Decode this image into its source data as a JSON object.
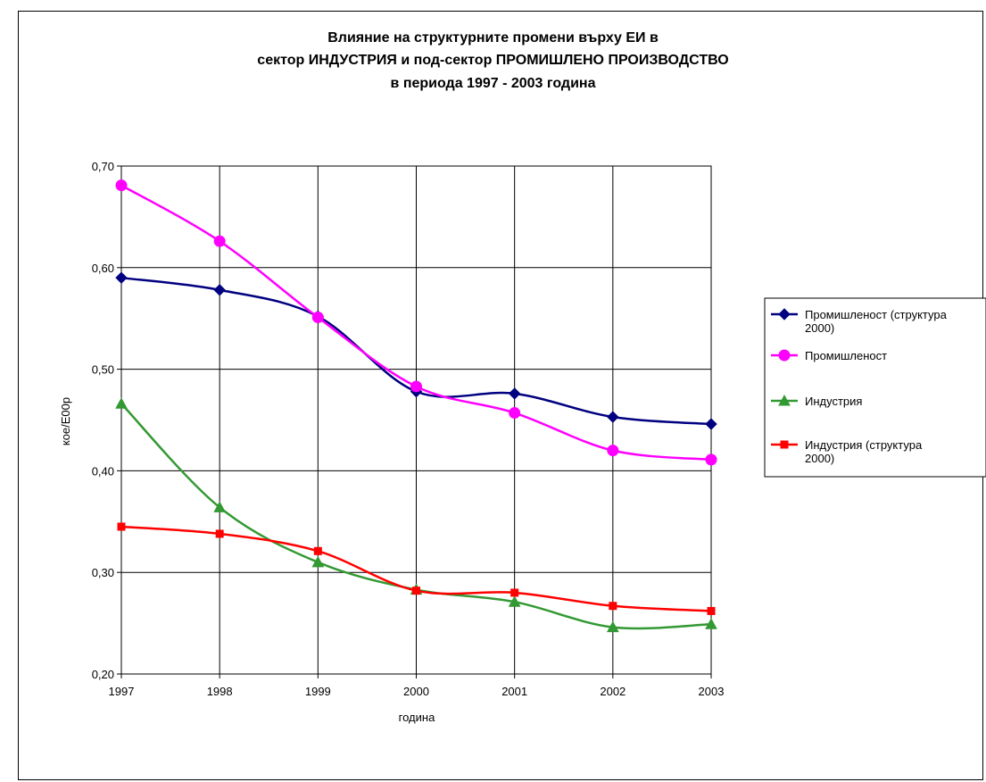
{
  "chart_data": {
    "type": "line",
    "title": [
      "Влияние на структурните промени върху ЕИ в",
      "сектор ИНДУСТРИЯ и под-сектор ПРОМИШЛЕНО ПРОИЗВОДСТВО",
      "в периода 1997 - 2003 година"
    ],
    "xlabel": "година",
    "ylabel": "кое/Е00р",
    "categories": [
      "1997",
      "1998",
      "1999",
      "2000",
      "2001",
      "2002",
      "2003"
    ],
    "ylim": [
      0.2,
      0.7
    ],
    "yticks": [
      "0,20",
      "0,30",
      "0,40",
      "0,50",
      "0,60",
      "0,70"
    ],
    "grid": true,
    "legend_position": "right",
    "series": [
      {
        "name": "Промишленост (структура 2000)",
        "legend_lines": [
          "Промишленост (структура",
          "2000)"
        ],
        "color": "#000080",
        "marker": "diamond",
        "values": [
          0.59,
          0.578,
          0.552,
          0.478,
          0.476,
          0.453,
          0.446
        ]
      },
      {
        "name": "Промишленост",
        "legend_lines": [
          "Промишленост"
        ],
        "color": "#ff00ff",
        "marker": "circle",
        "values": [
          0.681,
          0.626,
          0.551,
          0.483,
          0.457,
          0.42,
          0.411
        ]
      },
      {
        "name": "Индустрия",
        "legend_lines": [
          "Индустрия"
        ],
        "color": "#339933",
        "marker": "triangle",
        "values": [
          0.466,
          0.364,
          0.31,
          0.283,
          0.271,
          0.246,
          0.249
        ]
      },
      {
        "name": "Индустрия (структура 2000)",
        "legend_lines": [
          "Индустрия (структура",
          "2000)"
        ],
        "color": "#ff0000",
        "marker": "square",
        "values": [
          0.345,
          0.338,
          0.321,
          0.282,
          0.28,
          0.267,
          0.262
        ]
      }
    ]
  }
}
